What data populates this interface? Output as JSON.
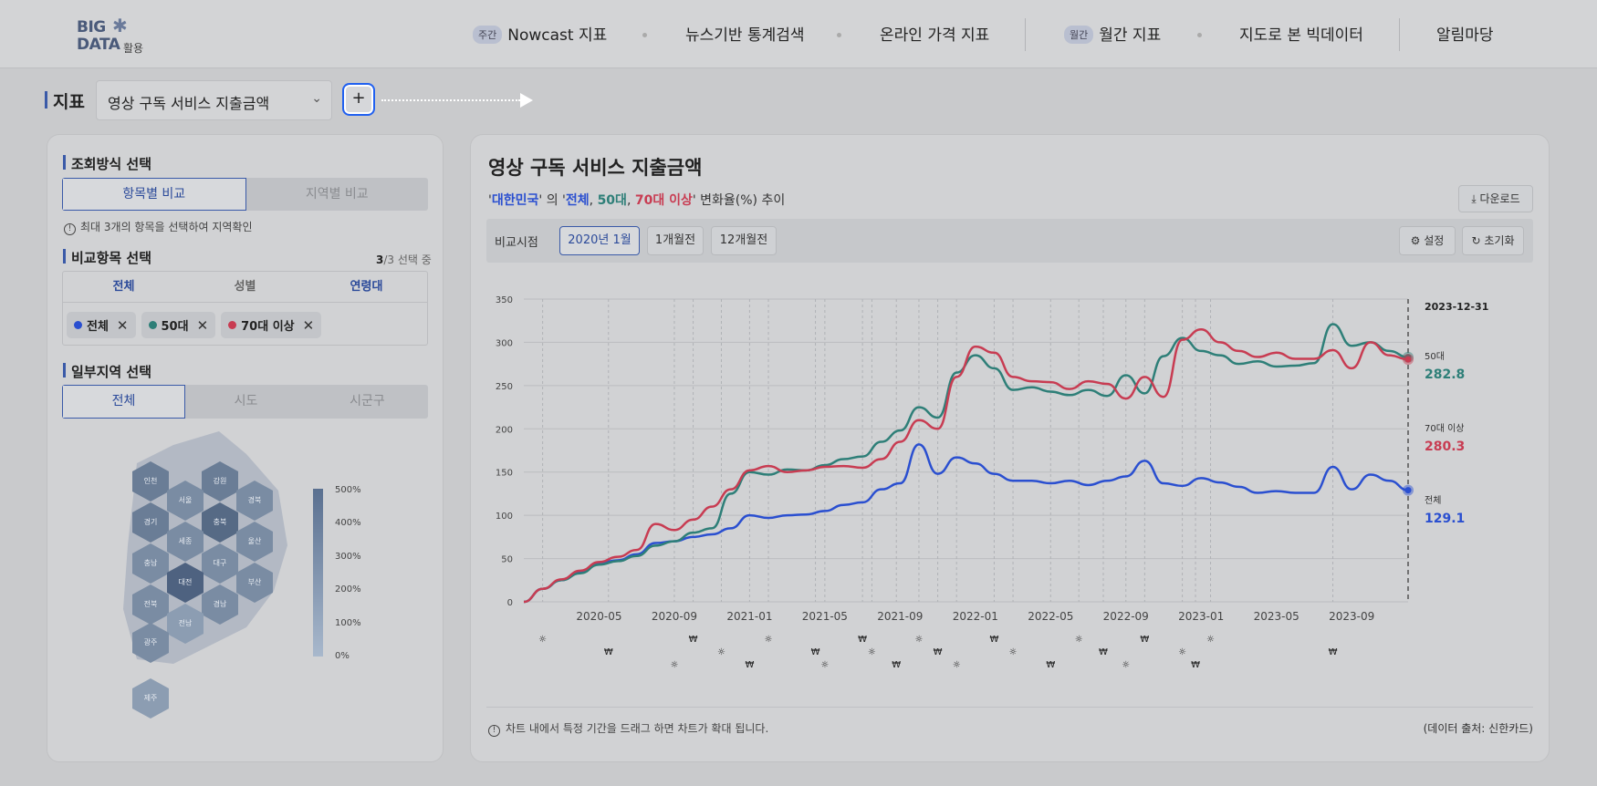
{
  "header": {
    "logo_big": "BIG",
    "logo_data": "DATA",
    "logo_suffix": "활용",
    "nav": [
      {
        "badge": "주간",
        "label": "Nowcast 지표"
      },
      {
        "badge": "",
        "label": "뉴스기반 통계검색"
      },
      {
        "badge": "",
        "label": "온라인 가격 지표"
      },
      {
        "badge": "월간",
        "label": "월간 지표"
      },
      {
        "badge": "",
        "label": "지도로 본 빅데이터"
      },
      {
        "badge": "",
        "label": "알림마당"
      }
    ]
  },
  "indicator": {
    "label": "지표",
    "selected": "영상 구독 서비스 지출금액",
    "add_label": "+"
  },
  "left": {
    "view_mode_title": "조회방식 선택",
    "view_modes": [
      "항목별 비교",
      "지역별 비교"
    ],
    "view_hint": "최대 3개의 항목을 선택하여 지역확인",
    "compare_title": "비교항목 선택",
    "compare_count_num": "3",
    "compare_count_rest": "/3 선택 중",
    "compare_tabs": [
      "전체",
      "성별",
      "연령대"
    ],
    "chips": [
      {
        "label": "전체",
        "color": "#2a4fd0"
      },
      {
        "label": "50대",
        "color": "#2e7f78"
      },
      {
        "label": "70대 이상",
        "color": "#c83c52"
      }
    ],
    "region_title": "일부지역 선택",
    "region_tabs": [
      "전체",
      "시도",
      "시군구"
    ],
    "map_regions": [
      "인천",
      "강원",
      "서울",
      "경북",
      "경기",
      "충북",
      "세종",
      "울산",
      "충남",
      "대구",
      "대전",
      "부산",
      "전북",
      "경남",
      "전남",
      "광주",
      "제주"
    ],
    "legend": [
      "500%",
      "400%",
      "300%",
      "200%",
      "100%",
      "0%"
    ]
  },
  "chart_panel": {
    "title": "영상 구독 서비스 지출금액",
    "sub_region": "대한민국",
    "sub_of": " 의 ",
    "sub_s1": "전체",
    "sub_s2": "50대",
    "sub_s3": "70대 이상",
    "sub_tail": " 변화율(%) 추이",
    "download": "다운로드",
    "compare_label": "비교시점",
    "compare_options": [
      "2020년 1월",
      "1개월전",
      "12개월전"
    ],
    "settings": "설정",
    "reset": "초기화",
    "footer_hint": "차트 내에서 특정 기간을 드래그 하면 차트가 확대 됩니다.",
    "source": "(데이터 출처: 신한카드)",
    "end_date": "2023-12-31",
    "end_labels": [
      {
        "name": "50대",
        "value": "282.8",
        "color": "#2e7f78"
      },
      {
        "name": "70대 이상",
        "value": "280.3",
        "color": "#c83c52"
      },
      {
        "name": "전체",
        "value": "129.1",
        "color": "#2a4fd0"
      }
    ]
  },
  "chart_data": {
    "type": "line",
    "x": [
      "2020-01",
      "2020-02",
      "2020-03",
      "2020-04",
      "2020-05",
      "2020-06",
      "2020-07",
      "2020-08",
      "2020-09",
      "2020-10",
      "2020-11",
      "2020-12",
      "2021-01",
      "2021-02",
      "2021-03",
      "2021-04",
      "2021-05",
      "2021-06",
      "2021-07",
      "2021-08",
      "2021-09",
      "2021-10",
      "2021-11",
      "2021-12",
      "2022-01",
      "2022-02",
      "2022-03",
      "2022-04",
      "2022-05",
      "2022-06",
      "2022-07",
      "2022-08",
      "2022-09",
      "2022-10",
      "2022-11",
      "2022-12",
      "2023-01",
      "2023-02",
      "2023-03",
      "2023-04",
      "2023-05",
      "2023-06",
      "2023-07",
      "2023-08",
      "2023-09",
      "2023-10",
      "2023-11",
      "2023-12"
    ],
    "series": [
      {
        "name": "전체",
        "color": "#2a4fd0",
        "values": [
          0,
          15,
          25,
          35,
          45,
          48,
          55,
          68,
          70,
          75,
          78,
          85,
          100,
          97,
          100,
          101,
          105,
          112,
          115,
          130,
          137,
          182,
          148,
          167,
          160,
          148,
          140,
          140,
          137,
          140,
          135,
          140,
          145,
          163,
          137,
          134,
          143,
          138,
          133,
          126,
          128,
          126,
          126,
          156,
          130,
          147,
          140,
          129
        ]
      },
      {
        "name": "50대",
        "color": "#2e7f78",
        "values": [
          0,
          15,
          25,
          33,
          43,
          47,
          53,
          65,
          70,
          80,
          85,
          125,
          150,
          147,
          153,
          152,
          158,
          165,
          168,
          185,
          198,
          225,
          213,
          265,
          285,
          270,
          245,
          248,
          243,
          239,
          245,
          238,
          262,
          241,
          284,
          305,
          290,
          285,
          275,
          278,
          272,
          273,
          276,
          321,
          296,
          300,
          290,
          282.8
        ]
      },
      {
        "name": "70대 이상",
        "color": "#c83c52",
        "values": [
          0,
          15,
          26,
          36,
          46,
          52,
          60,
          90,
          83,
          95,
          110,
          130,
          152,
          157,
          150,
          152,
          156,
          157,
          155,
          165,
          185,
          210,
          200,
          260,
          295,
          288,
          260,
          255,
          254,
          246,
          255,
          252,
          235,
          260,
          237,
          303,
          315,
          300,
          290,
          283,
          288,
          281,
          281,
          291,
          270,
          300,
          285,
          280.3
        ]
      }
    ],
    "x_ticks": [
      "2020-05",
      "2020-09",
      "2021-01",
      "2021-05",
      "2021-09",
      "2022-01",
      "2022-05",
      "2022-09",
      "2023-01",
      "2023-05",
      "2023-09"
    ],
    "y_ticks": [
      0,
      50,
      100,
      150,
      200,
      250,
      300,
      350
    ],
    "ylim": [
      0,
      350
    ],
    "grid": true
  }
}
